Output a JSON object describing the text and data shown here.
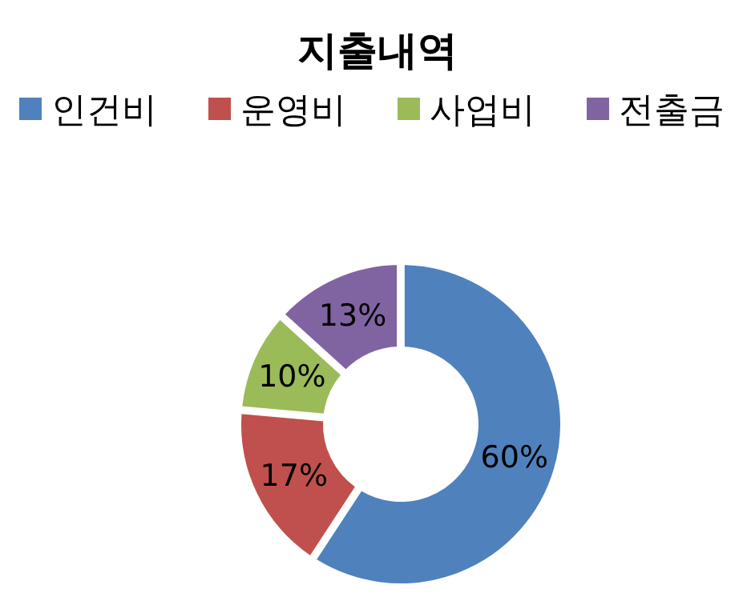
{
  "chart_data": {
    "type": "donut",
    "title": "지출내역",
    "categories": [
      "인건비",
      "운영비",
      "사업비",
      "전출금"
    ],
    "values": [
      60,
      17,
      10,
      13
    ],
    "colors": [
      "#4f81bd",
      "#c0504d",
      "#9bbb59",
      "#8064a2"
    ],
    "value_labels": [
      "60%",
      "17%",
      "10%",
      "13%"
    ],
    "legend": "top"
  }
}
